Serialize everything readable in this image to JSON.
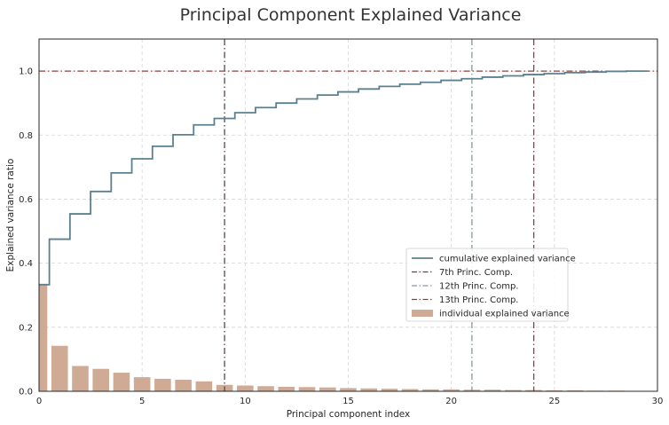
{
  "chart_data": {
    "type": "bar",
    "title": "Principal Component Explained Variance",
    "xlabel": "Principal component index",
    "ylabel": "Explained variance ratio",
    "xlim": [
      0,
      30
    ],
    "ylim": [
      0,
      1.1
    ],
    "xticks": [
      0,
      5,
      10,
      15,
      20,
      25,
      30
    ],
    "yticks": [
      0.0,
      0.2,
      0.4,
      0.6,
      0.8,
      1.0
    ],
    "grid": true,
    "legend_position": "lower-right",
    "colors": {
      "bars": "#cfab96",
      "cumulative": "#5b8191",
      "vline_7": "#56484f",
      "vline_12": "#7d9aa1",
      "vline_13": "#8e3f3c",
      "hline": "#8e3f3c",
      "grid": "#d5d5d5"
    },
    "series": [
      {
        "name": "individual explained variance",
        "type": "bar",
        "x": [
          0,
          1,
          2,
          3,
          4,
          5,
          6,
          7,
          8,
          9,
          10,
          11,
          12,
          13,
          14,
          15,
          16,
          17,
          18,
          19,
          20,
          21,
          22,
          23,
          24,
          25,
          26,
          27,
          28,
          29
        ],
        "values": [
          0.333,
          0.142,
          0.079,
          0.07,
          0.058,
          0.044,
          0.039,
          0.036,
          0.031,
          0.02,
          0.018,
          0.016,
          0.014,
          0.013,
          0.012,
          0.01,
          0.009,
          0.008,
          0.007,
          0.006,
          0.006,
          0.005,
          0.005,
          0.004,
          0.004,
          0.003,
          0.003,
          0.002,
          0.002,
          0.001
        ]
      },
      {
        "name": "cumulative explained variance",
        "type": "step",
        "x": [
          0,
          1,
          2,
          3,
          4,
          5,
          6,
          7,
          8,
          9,
          10,
          11,
          12,
          13,
          14,
          15,
          16,
          17,
          18,
          19,
          20,
          21,
          22,
          23,
          24,
          25,
          26,
          27,
          28,
          29
        ],
        "values": [
          0.333,
          0.475,
          0.554,
          0.624,
          0.682,
          0.726,
          0.765,
          0.801,
          0.832,
          0.852,
          0.87,
          0.886,
          0.9,
          0.913,
          0.925,
          0.935,
          0.944,
          0.952,
          0.959,
          0.965,
          0.971,
          0.976,
          0.981,
          0.985,
          0.989,
          0.992,
          0.995,
          0.997,
          0.999,
          1.0
        ]
      }
    ],
    "reference_lines": [
      {
        "name": "7th Princ. Comp.",
        "orientation": "vertical",
        "x": 9
      },
      {
        "name": "12th Princ. Comp.",
        "orientation": "vertical",
        "x": 21
      },
      {
        "name": "13th Princ. Comp.",
        "orientation": "vertical",
        "x": 24
      },
      {
        "name": "",
        "orientation": "horizontal",
        "y": 1.0
      }
    ],
    "legend": [
      "cumulative explained variance",
      "7th Princ. Comp.",
      "12th Princ. Comp.",
      "13th Princ. Comp.",
      "individual explained variance"
    ]
  }
}
